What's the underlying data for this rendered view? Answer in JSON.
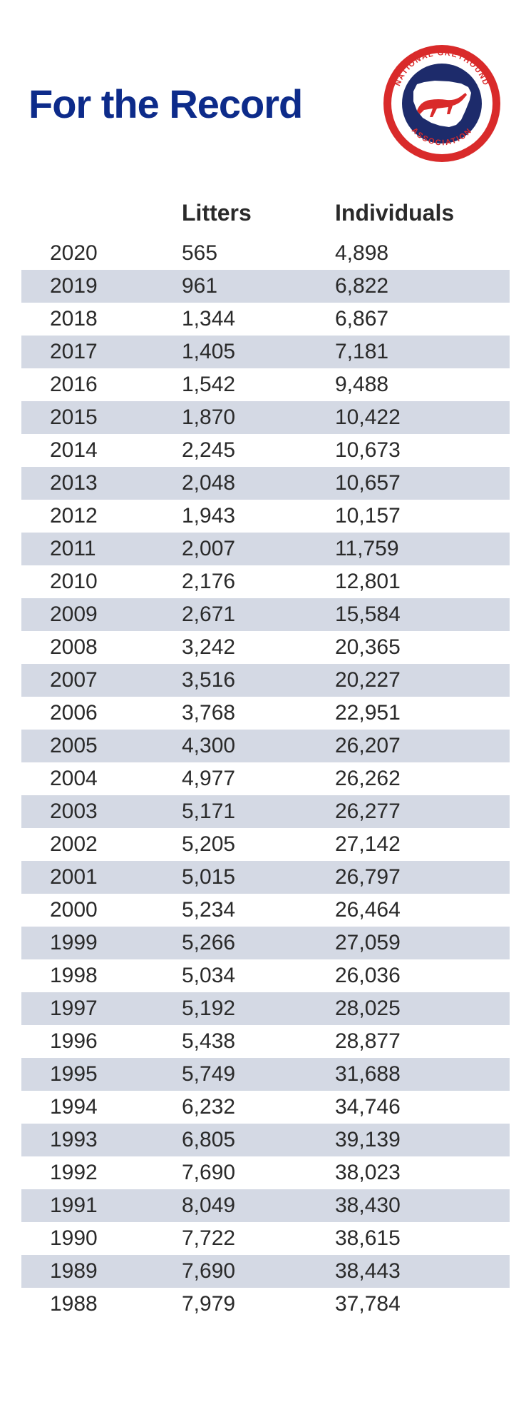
{
  "title": "For the Record",
  "title_color": "#0d2b8a",
  "logo": {
    "text_top": "NATIONAL GREYHOUND",
    "text_bottom": "ASSOCIATION",
    "outer_ring": "#d92a2a",
    "inner_disc": "#1d2b6b",
    "map_fill": "#ffffff",
    "text_color": "#d92a2a"
  },
  "table": {
    "columns": [
      "",
      "Litters",
      "Individuals"
    ],
    "stripe_color": "#d4d9e4",
    "font_size": 30,
    "header_font_size": 32,
    "rows": [
      {
        "year": "2020",
        "litters": "565",
        "individuals": "4,898"
      },
      {
        "year": "2019",
        "litters": "961",
        "individuals": "6,822"
      },
      {
        "year": "2018",
        "litters": "1,344",
        "individuals": "6,867"
      },
      {
        "year": "2017",
        "litters": "1,405",
        "individuals": "7,181"
      },
      {
        "year": "2016",
        "litters": "1,542",
        "individuals": "9,488"
      },
      {
        "year": "2015",
        "litters": "1,870",
        "individuals": "10,422"
      },
      {
        "year": "2014",
        "litters": "2,245",
        "individuals": "10,673"
      },
      {
        "year": "2013",
        "litters": "2,048",
        "individuals": "10,657"
      },
      {
        "year": "2012",
        "litters": "1,943",
        "individuals": "10,157"
      },
      {
        "year": "2011",
        "litters": "2,007",
        "individuals": "11,759"
      },
      {
        "year": "2010",
        "litters": "2,176",
        "individuals": "12,801"
      },
      {
        "year": "2009",
        "litters": "2,671",
        "individuals": "15,584"
      },
      {
        "year": "2008",
        "litters": "3,242",
        "individuals": "20,365"
      },
      {
        "year": "2007",
        "litters": "3,516",
        "individuals": "20,227"
      },
      {
        "year": "2006",
        "litters": "3,768",
        "individuals": "22,951"
      },
      {
        "year": "2005",
        "litters": "4,300",
        "individuals": "26,207"
      },
      {
        "year": "2004",
        "litters": "4,977",
        "individuals": "26,262"
      },
      {
        "year": "2003",
        "litters": "5,171",
        "individuals": "26,277"
      },
      {
        "year": "2002",
        "litters": "5,205",
        "individuals": "27,142"
      },
      {
        "year": "2001",
        "litters": "5,015",
        "individuals": "26,797"
      },
      {
        "year": "2000",
        "litters": "5,234",
        "individuals": "26,464"
      },
      {
        "year": "1999",
        "litters": "5,266",
        "individuals": "27,059"
      },
      {
        "year": "1998",
        "litters": "5,034",
        "individuals": "26,036"
      },
      {
        "year": "1997",
        "litters": "5,192",
        "individuals": "28,025"
      },
      {
        "year": "1996",
        "litters": "5,438",
        "individuals": "28,877"
      },
      {
        "year": "1995",
        "litters": "5,749",
        "individuals": "31,688"
      },
      {
        "year": "1994",
        "litters": "6,232",
        "individuals": "34,746"
      },
      {
        "year": "1993",
        "litters": "6,805",
        "individuals": "39,139"
      },
      {
        "year": "1992",
        "litters": "7,690",
        "individuals": "38,023"
      },
      {
        "year": "1991",
        "litters": "8,049",
        "individuals": "38,430"
      },
      {
        "year": "1990",
        "litters": "7,722",
        "individuals": "38,615"
      },
      {
        "year": "1989",
        "litters": "7,690",
        "individuals": "38,443"
      },
      {
        "year": "1988",
        "litters": "7,979",
        "individuals": "37,784"
      }
    ]
  }
}
